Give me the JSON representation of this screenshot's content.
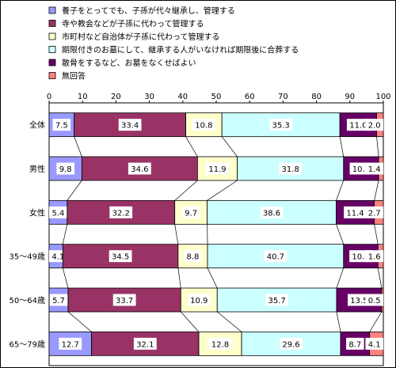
{
  "chart_data": {
    "type": "bar",
    "orientation": "horizontal",
    "stacked": true,
    "percent_stacked": true,
    "connector_lines": true,
    "title": "",
    "xlabel": "",
    "ylabel": "",
    "xlim": [
      0,
      100
    ],
    "xticks": [
      0,
      10,
      20,
      30,
      40,
      50,
      60,
      70,
      80,
      90,
      100
    ],
    "xtick_labels": [
      "0",
      "10",
      "20",
      "30",
      "40",
      "50",
      "60",
      "70",
      "80",
      "90",
      "100"
    ],
    "legend_position": "top",
    "categories": [
      "全体",
      "男性",
      "女性",
      "35～49歳",
      "50～64歳",
      "65～79歳"
    ],
    "series": [
      {
        "name": "養子をとってでも、子孫が代々継承し、管理する",
        "color": "#9999ff",
        "values": [
          7.5,
          9.8,
          5.4,
          4.1,
          5.7,
          12.7
        ]
      },
      {
        "name": "寺や教会などが子孫に代わって管理する",
        "color": "#993366",
        "values": [
          33.4,
          34.6,
          32.2,
          34.5,
          33.7,
          32.1
        ]
      },
      {
        "name": "市町村など自治体が子孫に代わって管理する",
        "color": "#ffffcc",
        "values": [
          10.8,
          11.9,
          9.7,
          8.8,
          10.9,
          12.8
        ]
      },
      {
        "name": "期限付きのお墓にして、継承する人がいなければ期限後に合葬する",
        "color": "#ccffff",
        "values": [
          35.3,
          31.8,
          38.6,
          40.7,
          35.7,
          29.6
        ]
      },
      {
        "name": "散骨をするなど、お墓をなくせばよい",
        "color": "#660066",
        "values": [
          11.0,
          10.5,
          11.4,
          10.3,
          13.5,
          8.7
        ]
      },
      {
        "name": "無回答",
        "color": "#ff8080",
        "values": [
          2.0,
          1.4,
          2.7,
          1.6,
          0.5,
          4.1
        ]
      }
    ],
    "value_labels": [
      [
        "7.5",
        "33.4",
        "10.8",
        "35.3",
        "11.0",
        "2.0"
      ],
      [
        "9.8",
        "34.6",
        "11.9",
        "31.8",
        "10.5",
        "1.4"
      ],
      [
        "5.4",
        "32.2",
        "9.7",
        "38.6",
        "11.4",
        "2.7"
      ],
      [
        "4.1",
        "34.5",
        "8.8",
        "40.7",
        "10.3",
        "1.6"
      ],
      [
        "5.7",
        "33.7",
        "10.9",
        "35.7",
        "13.5",
        "0.5"
      ],
      [
        "12.7",
        "32.1",
        "12.8",
        "29.6",
        "8.7",
        "4.1"
      ]
    ]
  }
}
